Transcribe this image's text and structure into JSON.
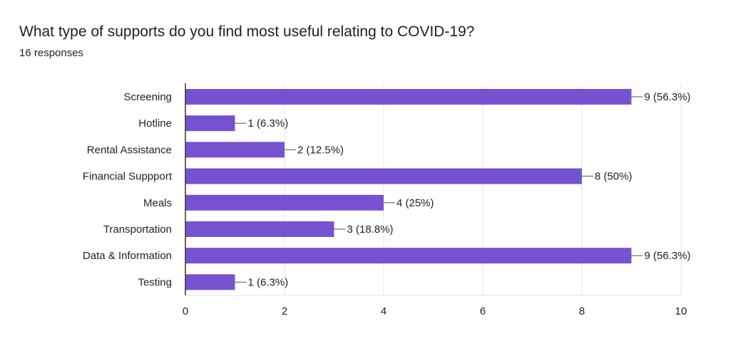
{
  "title": "What type of supports do you find most useful relating to COVID-19?",
  "subtitle": "16 responses",
  "colors": {
    "bar": "#7652d1",
    "grid": "#e6e6e6",
    "axis": "#333333",
    "text": "#222222"
  },
  "chart_data": {
    "type": "bar",
    "orientation": "horizontal",
    "title": "What type of supports do you find most useful relating to COVID-19?",
    "subtitle": "16 responses",
    "xlabel": "",
    "ylabel": "",
    "categories": [
      "Screening",
      "Hotline",
      "Rental Assistance",
      "Financial Suppport",
      "Meals",
      "Transportation",
      "Data & Information",
      "Testing"
    ],
    "values": [
      9,
      1,
      2,
      8,
      4,
      3,
      9,
      1
    ],
    "data_labels": [
      "9 (56.3%)",
      "1 (6.3%)",
      "2 (12.5%)",
      "8 (50%)",
      "4 (25%)",
      "3 (18.8%)",
      "9 (56.3%)",
      "1 (6.3%)"
    ],
    "xlim": [
      0,
      10
    ],
    "xticks": [
      0,
      2,
      4,
      6,
      8,
      10
    ],
    "grid": true,
    "legend": "none"
  }
}
